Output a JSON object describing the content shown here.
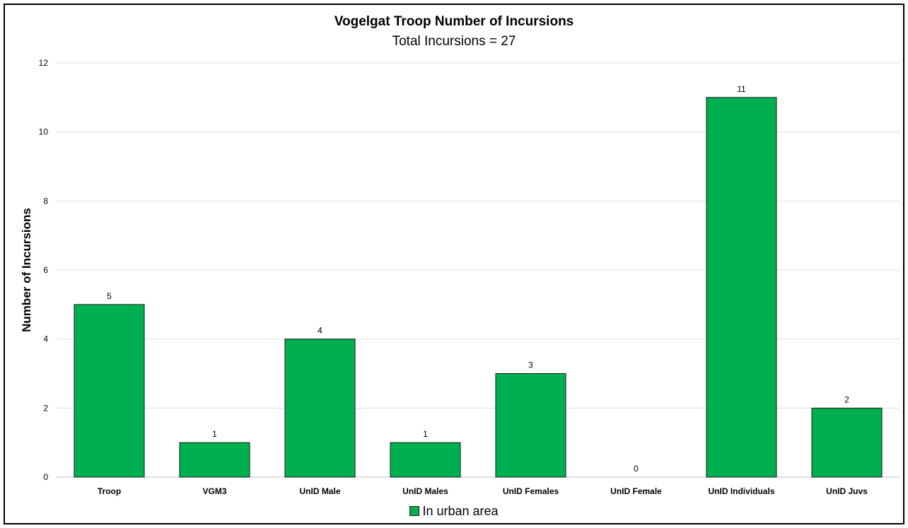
{
  "chart_data": {
    "type": "bar",
    "title": "Vogelgat Troop Number of Incursions",
    "subtitle": "Total Incursions = 27",
    "xlabel": "",
    "ylabel": "Number of Incursions",
    "categories": [
      "Troop",
      "VGM3",
      "UnID Male",
      "UnID Males",
      "UnID Females",
      "UnID Female",
      "UnID Individuals",
      "UnID Juvs"
    ],
    "series": [
      {
        "name": "In urban area",
        "values": [
          5,
          1,
          4,
          1,
          3,
          0,
          11,
          2
        ]
      }
    ],
    "ylim": [
      0,
      12
    ],
    "yticks": [
      "0",
      "2",
      "4",
      "6",
      "8",
      "10",
      "12"
    ],
    "data_labels": [
      "5",
      "1",
      "4",
      "1",
      "3",
      "0",
      "11",
      "2"
    ],
    "grid": true,
    "legend_position": "bottom",
    "colors": {
      "bar": "#00b050",
      "bar_edge": "#1a1a1a",
      "grid": "#e0e0e0",
      "axis": "#bfbfbf"
    }
  }
}
